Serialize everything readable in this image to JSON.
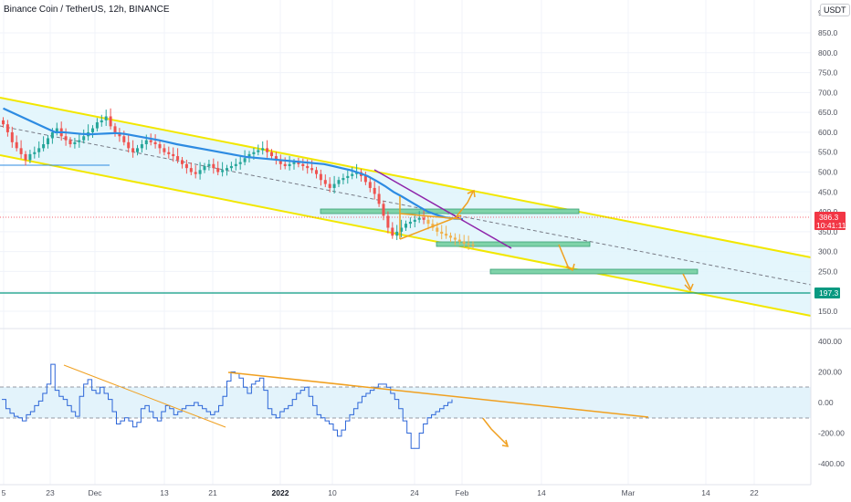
{
  "header": {
    "symbol_title": "Binance Coin / TetherUS, 12h, BINANCE",
    "currency": "USDT",
    "scale_top_label": "9"
  },
  "price_tag": {
    "value": "386.3",
    "timer": "10:41:11",
    "color": "#f23645"
  },
  "level_tag": {
    "value": "197.3",
    "color": "#089981"
  },
  "chart_data": [
    {
      "type": "line",
      "title": "Binance Coin / TetherUS, 12h, BINANCE",
      "y_axis": {
        "ticks": [
          "850.0",
          "800.0",
          "750.0",
          "700.0",
          "650.0",
          "600.0",
          "550.0",
          "500.0",
          "450.0",
          "400.0",
          "350.0",
          "300.0",
          "250.0",
          "200.0",
          "150.0"
        ],
        "range": [
          120,
          900
        ]
      },
      "x_axis": {
        "ticks": [
          "5",
          "23",
          "Dec",
          "13",
          "21",
          "2022",
          "10",
          "24",
          "Feb",
          "14",
          "Mar",
          "14",
          "22"
        ],
        "bold_ticks": [
          "2022"
        ]
      },
      "grid": true,
      "series": [
        {
          "kind": "candles",
          "up_color": "#26a69a",
          "down_color": "#ef5350",
          "projected_color": "#f0b14d",
          "close": [
            620,
            600,
            575,
            560,
            545,
            530,
            545,
            550,
            560,
            570,
            585,
            600,
            610,
            590,
            580,
            570,
            575,
            580,
            590,
            600,
            610,
            625,
            630,
            640,
            615,
            600,
            590,
            575,
            560,
            550,
            560,
            570,
            580,
            575,
            570,
            560,
            550,
            545,
            540,
            530,
            520,
            510,
            500,
            495,
            505,
            515,
            520,
            510,
            500,
            505,
            510,
            515,
            520,
            525,
            535,
            545,
            550,
            555,
            560,
            550,
            540,
            530,
            520,
            515,
            520,
            525,
            520,
            515,
            510,
            505,
            495,
            480,
            470,
            460,
            470,
            480,
            485,
            490,
            495,
            500,
            490,
            475,
            460,
            445,
            420,
            390,
            360,
            340,
            350,
            360,
            370,
            375,
            380,
            385,
            380,
            370,
            360,
            350,
            345,
            340,
            335,
            330,
            325,
            320,
            318,
            315
          ]
        },
        {
          "kind": "line",
          "name": "",
          "color": "#2d8be2",
          "values": [
            660,
            650,
            640,
            630,
            620,
            610,
            600,
            600,
            598,
            596,
            595,
            596,
            597,
            598,
            596,
            592,
            588,
            584,
            580,
            575,
            570,
            566,
            562,
            558,
            554,
            550,
            546,
            542,
            538,
            536,
            534,
            532,
            530,
            528,
            526,
            524,
            522,
            520,
            515,
            510,
            505,
            498,
            490,
            478,
            465,
            450,
            438,
            425,
            412,
            400,
            392,
            386,
            383,
            382
          ]
        }
      ]
    },
    {
      "type": "line",
      "y_axis": {
        "ticks": [
          "400.00",
          "200.00",
          "0.00",
          "-200.00",
          "-400.00"
        ],
        "range": [
          -460,
          430
        ]
      },
      "band": [
        100,
        -100
      ],
      "series": [
        {
          "name": "",
          "color": "#2d66d8",
          "values": [
            20,
            -40,
            -70,
            -90,
            -100,
            -120,
            -80,
            -60,
            -20,
            10,
            60,
            120,
            250,
            80,
            40,
            20,
            -20,
            -60,
            -90,
            40,
            120,
            150,
            80,
            60,
            100,
            60,
            20,
            -60,
            -140,
            -120,
            -100,
            -120,
            -160,
            -130,
            -40,
            -20,
            -60,
            -100,
            -120,
            -60,
            -20,
            -40,
            -80,
            -60,
            -40,
            -20,
            -20,
            0,
            -20,
            -40,
            -60,
            -80,
            -60,
            -20,
            40,
            140,
            200,
            190,
            160,
            100,
            60,
            120,
            140,
            160,
            80,
            -40,
            -80,
            -100,
            -60,
            -40,
            -20,
            20,
            60,
            80,
            100,
            40,
            -20,
            -80,
            -100,
            -120,
            -140,
            -180,
            -220,
            -180,
            -120,
            -80,
            -40,
            0,
            40,
            60,
            80,
            100,
            120,
            120,
            100,
            60,
            20,
            -40,
            -120,
            -200,
            -300,
            -300,
            -200,
            -140,
            -100,
            -80,
            -60,
            -40,
            -20,
            0,
            20
          ]
        }
      ]
    }
  ]
}
